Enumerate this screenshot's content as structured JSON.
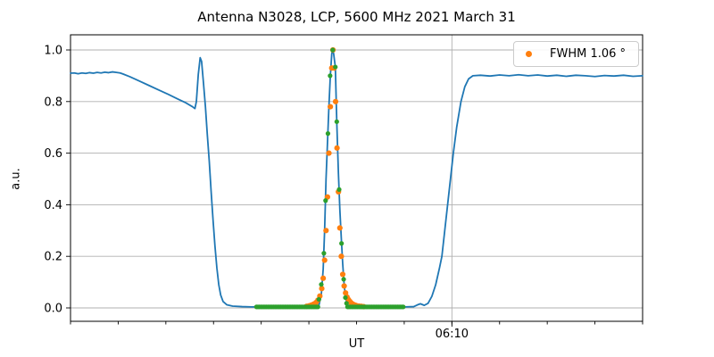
{
  "chart_data": {
    "type": "line",
    "title": "Antenna N3028, LCP, 5600 MHz 2021 March 31",
    "xlabel": "UT",
    "ylabel": "a.u.",
    "legend": {
      "label": "FWHM 1.06 °",
      "marker_color": "#ff7f0e",
      "position": "upper right"
    },
    "colors": {
      "line": "#1f77b4",
      "fit_points": "#ff7f0e",
      "data_points": "#2ca02c",
      "grid": "#b0b0b0",
      "spine": "#000000"
    },
    "grid": true,
    "x_axis": {
      "unit": "minutes after 06:00 UT",
      "xlim": [
        2,
        14
      ],
      "minor_tick_step_min": 1,
      "major_ticks": [
        {
          "t": 10,
          "label": "06:10"
        }
      ]
    },
    "y_axis": {
      "ylim": [
        -0.0519,
        1.0588
      ],
      "tick_values": [
        0.0,
        0.2,
        0.4,
        0.6,
        0.8,
        1.0
      ],
      "tick_labels": [
        "0.0",
        "0.2",
        "0.4",
        "0.6",
        "0.8",
        "1.0"
      ]
    },
    "series": [
      {
        "name": "antenna-signal-line",
        "kind": "line",
        "points": [
          [
            2.0,
            0.91
          ],
          [
            2.08,
            0.911
          ],
          [
            2.16,
            0.908
          ],
          [
            2.24,
            0.911
          ],
          [
            2.32,
            0.909
          ],
          [
            2.4,
            0.912
          ],
          [
            2.48,
            0.91
          ],
          [
            2.56,
            0.913
          ],
          [
            2.64,
            0.911
          ],
          [
            2.72,
            0.914
          ],
          [
            2.8,
            0.912
          ],
          [
            2.88,
            0.915
          ],
          [
            2.96,
            0.913
          ],
          [
            3.04,
            0.911
          ],
          [
            3.1,
            0.907
          ],
          [
            3.25,
            0.896
          ],
          [
            3.45,
            0.879
          ],
          [
            3.65,
            0.862
          ],
          [
            3.85,
            0.845
          ],
          [
            4.05,
            0.828
          ],
          [
            4.25,
            0.81
          ],
          [
            4.42,
            0.795
          ],
          [
            4.55,
            0.781
          ],
          [
            4.61,
            0.773
          ],
          [
            4.64,
            0.8
          ],
          [
            4.68,
            0.905
          ],
          [
            4.72,
            0.97
          ],
          [
            4.75,
            0.955
          ],
          [
            4.79,
            0.87
          ],
          [
            4.83,
            0.78
          ],
          [
            4.87,
            0.67
          ],
          [
            4.91,
            0.57
          ],
          [
            4.95,
            0.45
          ],
          [
            4.99,
            0.34
          ],
          [
            5.03,
            0.24
          ],
          [
            5.07,
            0.155
          ],
          [
            5.11,
            0.09
          ],
          [
            5.15,
            0.05
          ],
          [
            5.2,
            0.025
          ],
          [
            5.28,
            0.012
          ],
          [
            5.4,
            0.007
          ],
          [
            5.6,
            0.005
          ],
          [
            5.8,
            0.004
          ],
          [
            6.2,
            0.004
          ],
          [
            6.6,
            0.004
          ],
          [
            7.0,
            0.004
          ],
          [
            7.15,
            0.005
          ],
          [
            7.21,
            0.01
          ],
          [
            7.26,
            0.05
          ],
          [
            7.3,
            0.15
          ],
          [
            7.33,
            0.3
          ],
          [
            7.36,
            0.5
          ],
          [
            7.39,
            0.64
          ],
          [
            7.42,
            0.78
          ],
          [
            7.45,
            0.9
          ],
          [
            7.48,
            0.985
          ],
          [
            7.5,
            1.0
          ],
          [
            7.52,
            0.985
          ],
          [
            7.555,
            0.934
          ],
          [
            7.585,
            0.722
          ],
          [
            7.62,
            0.52
          ],
          [
            7.65,
            0.38
          ],
          [
            7.68,
            0.27
          ],
          [
            7.71,
            0.17
          ],
          [
            7.74,
            0.09
          ],
          [
            7.77,
            0.04
          ],
          [
            7.8,
            0.015
          ],
          [
            7.85,
            0.006
          ],
          [
            7.95,
            0.004
          ],
          [
            8.2,
            0.004
          ],
          [
            8.6,
            0.004
          ],
          [
            9.0,
            0.004
          ],
          [
            9.2,
            0.005
          ],
          [
            9.28,
            0.012
          ],
          [
            9.34,
            0.016
          ],
          [
            9.42,
            0.01
          ],
          [
            9.5,
            0.018
          ],
          [
            9.58,
            0.045
          ],
          [
            9.66,
            0.09
          ],
          [
            9.74,
            0.155
          ],
          [
            9.79,
            0.2
          ],
          [
            9.85,
            0.3
          ],
          [
            9.91,
            0.4
          ],
          [
            9.97,
            0.5
          ],
          [
            10.03,
            0.6
          ],
          [
            10.1,
            0.7
          ],
          [
            10.19,
            0.8
          ],
          [
            10.27,
            0.857
          ],
          [
            10.35,
            0.888
          ],
          [
            10.44,
            0.9
          ],
          [
            10.6,
            0.902
          ],
          [
            10.8,
            0.899
          ],
          [
            11.0,
            0.903
          ],
          [
            11.2,
            0.9
          ],
          [
            11.4,
            0.904
          ],
          [
            11.6,
            0.9
          ],
          [
            11.8,
            0.903
          ],
          [
            12.0,
            0.899
          ],
          [
            12.2,
            0.902
          ],
          [
            12.4,
            0.898
          ],
          [
            12.6,
            0.902
          ],
          [
            12.8,
            0.9
          ],
          [
            13.0,
            0.897
          ],
          [
            13.2,
            0.901
          ],
          [
            13.4,
            0.899
          ],
          [
            13.6,
            0.902
          ],
          [
            13.8,
            0.898
          ],
          [
            14.0,
            0.9
          ]
        ]
      },
      {
        "name": "gaussian-fit-points",
        "kind": "scatter",
        "marker_radius": 3.1,
        "points": [
          [
            6.95,
            0.006
          ],
          [
            7.0,
            0.008
          ],
          [
            7.05,
            0.011
          ],
          [
            7.1,
            0.015
          ],
          [
            7.15,
            0.021
          ],
          [
            7.19,
            0.03
          ],
          [
            7.23,
            0.046
          ],
          [
            7.27,
            0.075
          ],
          [
            7.3,
            0.115
          ],
          [
            7.33,
            0.185
          ],
          [
            7.36,
            0.3
          ],
          [
            7.39,
            0.43
          ],
          [
            7.42,
            0.6
          ],
          [
            7.45,
            0.78
          ],
          [
            7.48,
            0.93
          ],
          [
            7.505,
            1.0
          ],
          [
            7.53,
            0.93
          ],
          [
            7.56,
            0.8
          ],
          [
            7.59,
            0.62
          ],
          [
            7.62,
            0.45
          ],
          [
            7.65,
            0.31
          ],
          [
            7.68,
            0.2
          ],
          [
            7.71,
            0.13
          ],
          [
            7.74,
            0.085
          ],
          [
            7.77,
            0.058
          ],
          [
            7.8,
            0.042
          ],
          [
            7.83,
            0.032
          ],
          [
            7.86,
            0.025
          ],
          [
            7.89,
            0.019
          ],
          [
            7.92,
            0.015
          ],
          [
            7.95,
            0.012
          ],
          [
            7.98,
            0.01
          ],
          [
            8.01,
            0.008
          ],
          [
            8.05,
            0.007
          ],
          [
            8.1,
            0.006
          ],
          [
            8.15,
            0.005
          ]
        ]
      },
      {
        "name": "measured-data-points",
        "kind": "scatter",
        "marker_radius": 2.6,
        "points": [
          [
            7.21,
            0.033
          ],
          [
            7.26,
            0.091
          ],
          [
            7.315,
            0.212
          ],
          [
            7.35,
            0.416
          ],
          [
            7.4,
            0.676
          ],
          [
            7.445,
            0.9
          ],
          [
            7.5,
            1.0
          ],
          [
            7.555,
            0.934
          ],
          [
            7.585,
            0.722
          ],
          [
            7.635,
            0.459
          ],
          [
            7.685,
            0.25
          ],
          [
            7.73,
            0.111
          ],
          [
            7.765,
            0.04
          ],
          [
            7.79,
            0.018
          ]
        ],
        "baseline_segments": [
          {
            "from": 5.9,
            "to": 7.19,
            "step": 0.03,
            "value": 0.004
          },
          {
            "from": 7.81,
            "to": 8.98,
            "step": 0.03,
            "value": 0.004
          }
        ]
      }
    ]
  }
}
